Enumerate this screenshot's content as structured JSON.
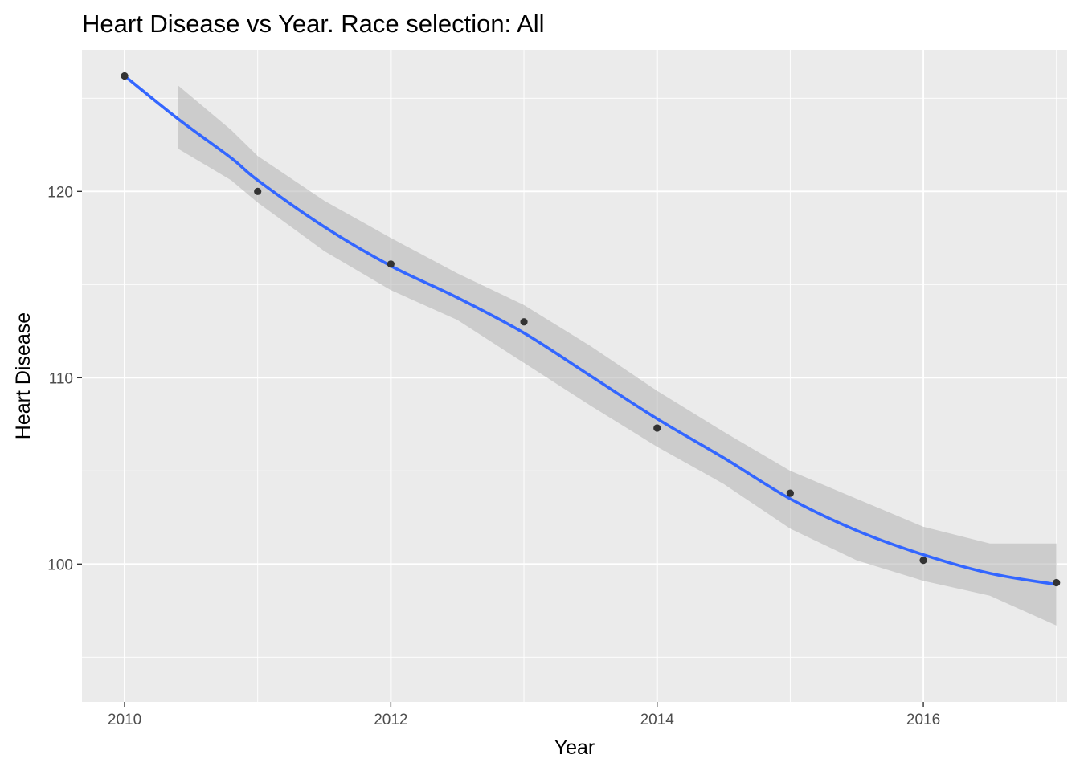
{
  "chart_data": {
    "type": "scatter",
    "title": "Heart Disease vs Year. Race selection: All",
    "xlabel": "Year",
    "ylabel": "Heart Disease",
    "xlim": [
      2009.68,
      2017.08
    ],
    "ylim": [
      92.6,
      127.6
    ],
    "x_ticks": [
      2010,
      2012,
      2014,
      2016
    ],
    "x_tick_labels": [
      "2010",
      "2012",
      "2014",
      "2016"
    ],
    "x_minor_ticks": [
      2011,
      2013,
      2015,
      2017
    ],
    "y_ticks": [
      100,
      110,
      120
    ],
    "y_tick_labels": [
      "100",
      "110",
      "120"
    ],
    "y_minor_ticks": [
      95,
      105,
      115,
      125
    ],
    "grid": true,
    "legend": "none",
    "colors": {
      "panel": "#ebebeb",
      "grid": "#ffffff",
      "points": "#333333",
      "smooth_line": "#3366ff",
      "ribbon": "#b3b3b3"
    },
    "points": {
      "x": [
        2010,
        2011,
        2012,
        2013,
        2014,
        2015,
        2016,
        2017
      ],
      "y": [
        126.2,
        120.0,
        116.1,
        113.0,
        107.3,
        103.8,
        100.2,
        99.0
      ]
    },
    "smooth": {
      "method": "loess",
      "x": [
        2010,
        2010.4,
        2010.8,
        2011,
        2011.5,
        2012,
        2012.5,
        2013,
        2013.5,
        2014,
        2014.5,
        2015,
        2015.5,
        2016,
        2016.5,
        2017
      ],
      "y": [
        126.2,
        123.9,
        121.8,
        120.6,
        118.1,
        116.0,
        114.3,
        112.4,
        110.1,
        107.8,
        105.7,
        103.5,
        101.8,
        100.5,
        99.5,
        98.9
      ],
      "ci_low": [
        null,
        122.3,
        120.6,
        119.4,
        116.8,
        114.7,
        113.1,
        110.8,
        108.5,
        106.3,
        104.3,
        101.9,
        100.2,
        99.1,
        98.3,
        96.7
      ],
      "ci_high": [
        null,
        125.7,
        123.3,
        121.9,
        119.5,
        117.5,
        115.6,
        113.9,
        111.7,
        109.3,
        107.1,
        105.0,
        103.5,
        102.0,
        101.1,
        101.1
      ]
    }
  }
}
